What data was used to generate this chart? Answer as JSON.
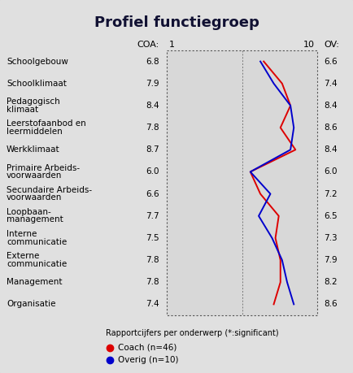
{
  "title": "Profiel functiegroep",
  "categories": [
    "Schoolgebouw",
    "Schoolklimaat",
    "Pedagogisch\nklimaat",
    "Leerstofaanbod en\nleermiddelen",
    "Werkklimaat",
    "Primaire Arbeids-\nvoorwaarden",
    "Secundaire Arbeids-\nvoorwaarden",
    "Loopbaan-\nmanagement",
    "Interne\ncommunicatie",
    "Externe\ncommunicatie",
    "Management",
    "Organisatie"
  ],
  "coa_values": [
    6.8,
    7.9,
    8.4,
    7.8,
    8.7,
    6.0,
    6.6,
    7.7,
    7.5,
    7.8,
    7.8,
    7.4
  ],
  "ov_values": [
    6.6,
    7.4,
    8.4,
    8.6,
    8.4,
    6.0,
    7.2,
    6.5,
    7.3,
    7.9,
    8.2,
    8.6
  ],
  "coach_values": [
    6.8,
    7.9,
    8.4,
    7.8,
    8.7,
    6.0,
    6.6,
    7.7,
    7.5,
    7.8,
    7.8,
    7.4
  ],
  "overig_values": [
    6.6,
    7.4,
    8.4,
    8.6,
    8.4,
    6.0,
    7.2,
    6.5,
    7.3,
    7.9,
    8.2,
    8.6
  ],
  "xmin": 1,
  "xmax": 10,
  "coach_color": "#dd0000",
  "overig_color": "#0000cc",
  "background_color": "#e0e0e0",
  "plot_bg_color": "#d0d0d0",
  "border_color": "#4444aa",
  "legend_label_rapportcijfers": "Rapportcijfers per onderwerp (*:significant)",
  "legend_label_coach": "Coach (n=46)",
  "legend_label_overig": "Overig (n=10)",
  "coa_label": "COA:",
  "ov_label": "OV:"
}
